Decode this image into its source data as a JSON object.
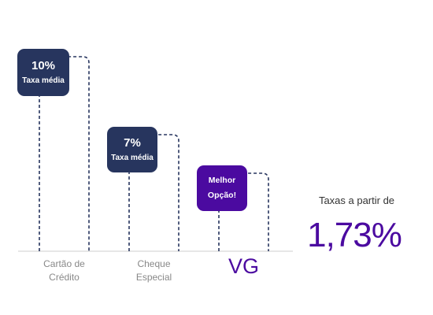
{
  "chart_data": {
    "type": "bar",
    "categories": [
      "Cartão de Crédito",
      "Cheque Especial",
      "VG"
    ],
    "category_lines": [
      [
        "Cartão de",
        "Crédito"
      ],
      [
        "Cheque",
        "Especial"
      ],
      [
        "VG"
      ]
    ],
    "values": [
      10,
      7,
      1.73
    ],
    "unit": "%",
    "bar_style": "dashed outline",
    "badges": [
      {
        "value_text": "10%",
        "label": "Taxa média"
      },
      {
        "value_text": "7%",
        "label": "Taxa média"
      },
      {
        "value_text": "",
        "label_lines": [
          "Melhor",
          "Opção!"
        ]
      }
    ],
    "highlight_index": 2,
    "callout": {
      "label": "Taxas a partir de",
      "value": "1,73%"
    },
    "colors": {
      "navy": "#27355e",
      "purple": "#4b0aa0",
      "axis": "#cfcfcf",
      "category_text": "#888888"
    }
  }
}
